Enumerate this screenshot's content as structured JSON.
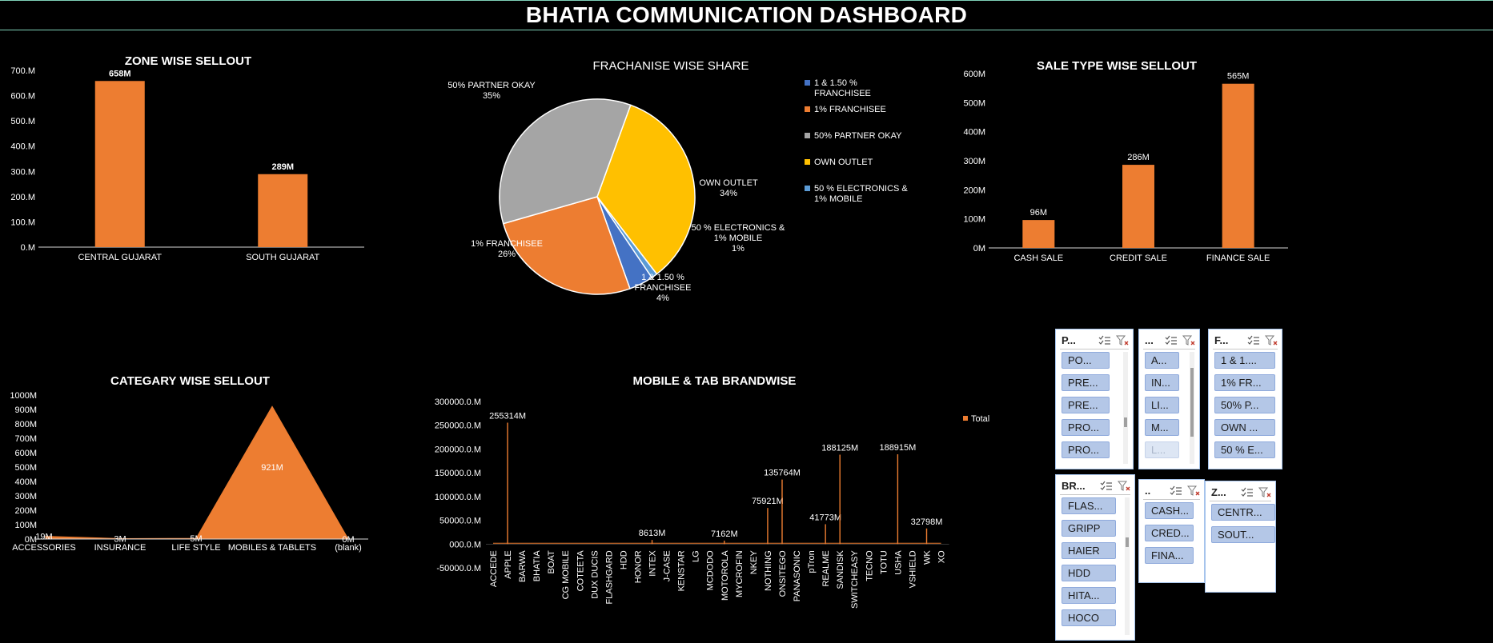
{
  "dashboard": {
    "title": "BHATIA COMMUNICATION DASHBOARD"
  },
  "colors": {
    "orange": "#ED7D31",
    "grey": "#A5A5A5",
    "gold": "#FFC000",
    "blue": "#4472C4",
    "lightblue": "#5B9BD5"
  },
  "chart_data": [
    {
      "id": "zone",
      "type": "bar",
      "title": "ZONE WISE SELLOUT",
      "categories": [
        "CENTRAL GUJARAT",
        "SOUTH GUJARAT"
      ],
      "values": [
        658,
        289
      ],
      "data_labels": [
        "658M",
        "289M"
      ],
      "ylim": [
        0,
        700
      ],
      "yticks": [
        0,
        100,
        200,
        300,
        400,
        500,
        600,
        700
      ],
      "ytick_labels": [
        "0.M",
        "100.M",
        "200.M",
        "300.M",
        "400.M",
        "500.M",
        "600.M",
        "700.M"
      ],
      "grid": false
    },
    {
      "id": "franchise",
      "type": "pie",
      "title": "FRACHANISE WISE SHARE",
      "slices": [
        {
          "name": "OWN OUTLET",
          "value": 34,
          "label": "34%",
          "color": "#FFC000"
        },
        {
          "name": "50 % ELECTRONICS & 1% MOBILE",
          "value": 1,
          "label": "1%",
          "color": "#5B9BD5"
        },
        {
          "name": "1 & 1.50 % FRANCHISEE",
          "value": 4,
          "label": "4%",
          "color": "#4472C4"
        },
        {
          "name": "1% FRANCHISEE",
          "value": 26,
          "label": "26%",
          "color": "#ED7D31"
        },
        {
          "name": "50% PARTNER OKAY",
          "value": 35,
          "label": "35%",
          "color": "#A5A5A5"
        }
      ],
      "legend": [
        "1 & 1.50 % FRANCHISEE",
        "1% FRANCHISEE",
        "50% PARTNER OKAY",
        "OWN OUTLET",
        "50 % ELECTRONICS & 1% MOBILE"
      ],
      "legend_position": "right"
    },
    {
      "id": "saletype",
      "type": "bar",
      "title": "SALE TYPE WISE SELLOUT",
      "categories": [
        "CASH SALE",
        "CREDIT SALE",
        "FINANCE SALE"
      ],
      "values": [
        96,
        286,
        565
      ],
      "data_labels": [
        "96M",
        "286M",
        "565M"
      ],
      "ylim": [
        0,
        600
      ],
      "yticks": [
        0,
        100,
        200,
        300,
        400,
        500,
        600
      ],
      "ytick_labels": [
        "0M",
        "100M",
        "200M",
        "300M",
        "400M",
        "500M",
        "600M"
      ],
      "grid": false
    },
    {
      "id": "category",
      "type": "area",
      "title": "CATEGARY WISE SELLOUT",
      "categories": [
        "ACCESSORIES",
        "INSURANCE",
        "LIFE STYLE",
        "MOBILES & TABLETS",
        "(blank)"
      ],
      "values": [
        19,
        3,
        5,
        921,
        0
      ],
      "data_labels": [
        "19M",
        "3M",
        "5M",
        "921M",
        "0M"
      ],
      "ylim": [
        0,
        1000
      ],
      "yticks": [
        0,
        100,
        200,
        300,
        400,
        500,
        600,
        700,
        800,
        900,
        1000
      ],
      "ytick_labels": [
        "0M",
        "100M",
        "200M",
        "300M",
        "400M",
        "500M",
        "600M",
        "700M",
        "800M",
        "900M",
        "1000M"
      ],
      "grid": false
    },
    {
      "id": "brand",
      "type": "line",
      "title": "MOBILE & TAB BRANDWISE",
      "series_name": "Total",
      "categories": [
        "ACCEDE",
        "APPLE",
        "BARWA",
        "BHATIA",
        "BOAT",
        "CG MOBILE",
        "COTEETA",
        "DUX DUCIS",
        "FLASHGARD",
        "HDD",
        "HONOR",
        "INTEX",
        "J-CASE",
        "KENSTAR",
        "LG",
        "MCDODO",
        "MOTOROLA",
        "MYCROFIN",
        "NKEY",
        "NOTHING",
        "ONSITEGO",
        "PANASONIC",
        "pTron",
        "REALME",
        "SANDISK",
        "SWITCHEASY",
        "TECNO",
        "TOTU",
        "USHA",
        "VSHIELD",
        "WK",
        "XO"
      ],
      "peaks": [
        {
          "x": 1,
          "value": 255314,
          "label": "255314M"
        },
        {
          "x": 11,
          "value": 8613,
          "label": "8613M"
        },
        {
          "x": 16,
          "value": 7162,
          "label": "7162M"
        },
        {
          "x": 19,
          "value": 75921,
          "label": "75921M"
        },
        {
          "x": 20,
          "value": 135764,
          "label": "135764M"
        },
        {
          "x": 23,
          "value": 41773,
          "label": "41773M"
        },
        {
          "x": 24,
          "value": 188125,
          "label": "188125M"
        },
        {
          "x": 28,
          "value": 188915,
          "label": "188915M"
        },
        {
          "x": 30,
          "value": 32798,
          "label": "32798M"
        }
      ],
      "ylim": [
        -50000,
        300000
      ],
      "yticks": [
        -50000,
        0,
        50000,
        100000,
        150000,
        200000,
        250000,
        300000
      ],
      "ytick_labels": [
        "-50000.0.M",
        "000.0.M",
        "50000.0.M",
        "100000.0.M",
        "150000.0.M",
        "200000.0.M",
        "250000.0.M",
        "300000.0.M"
      ],
      "legend_position": "right",
      "grid": false
    }
  ],
  "slicers": [
    {
      "id": "s1",
      "title": "P...",
      "items": [
        "PO...",
        "PRE...",
        "PRE...",
        "PRO...",
        "PRO..."
      ],
      "dim_items": []
    },
    {
      "id": "s2",
      "title": "...",
      "items": [
        "A...",
        "IN...",
        "LI...",
        "M..."
      ],
      "dim_items": [
        "L..."
      ]
    },
    {
      "id": "s3",
      "title": "F...",
      "items": [
        "1 & 1....",
        "1% FR...",
        "50% P...",
        "OWN ...",
        "50 % E..."
      ],
      "dim_items": []
    },
    {
      "id": "s4",
      "title": "BR...",
      "items": [
        "FLAS...",
        "GRIPP",
        "HAIER",
        "HDD",
        "HITA...",
        "HOCO"
      ],
      "dim_items": []
    },
    {
      "id": "s5",
      "title": "..",
      "items": [
        "CASH...",
        "CRED...",
        "FINA..."
      ],
      "dim_items": []
    },
    {
      "id": "s6",
      "title": "Z...",
      "items": [
        "CENTR...",
        "SOUT..."
      ],
      "dim_items": []
    }
  ]
}
